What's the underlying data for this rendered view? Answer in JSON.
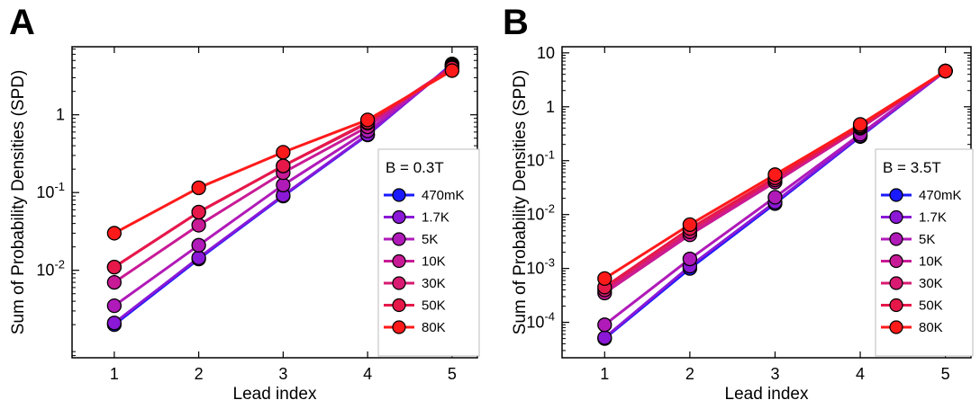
{
  "panels": [
    {
      "letter": "A",
      "legend_title": "B = 0.3T"
    },
    {
      "letter": "B",
      "legend_title": "B = 3.5T"
    }
  ],
  "chart_data": [
    {
      "type": "line",
      "title": "",
      "xlabel": "Lead index",
      "ylabel": "Sum of Probability Densities (SPD)",
      "yscale": "log",
      "x": [
        1,
        2,
        3,
        4,
        5
      ],
      "xlim": [
        0.5,
        5.3
      ],
      "ylim": [
        0.00075,
        7.5
      ],
      "yticks": [
        {
          "v": 0.01,
          "base": "10",
          "exp": "-2"
        },
        {
          "v": 0.1,
          "base": "10",
          "exp": "-1"
        },
        {
          "v": 1,
          "base": "1",
          "exp": ""
        }
      ],
      "grid": false,
      "legend_title": "B = 0.3T",
      "legend_position": "right",
      "series": [
        {
          "name": "470mK",
          "color": "#1a1aff",
          "values": [
            0.002,
            0.014,
            0.09,
            0.55,
            4.5
          ]
        },
        {
          "name": "1.7K",
          "color": "#8a18d6",
          "values": [
            0.0021,
            0.0145,
            0.092,
            0.56,
            4.4
          ]
        },
        {
          "name": "5K",
          "color": "#b01ab8",
          "values": [
            0.0035,
            0.021,
            0.125,
            0.62,
            4.3
          ]
        },
        {
          "name": "10K",
          "color": "#c81a96",
          "values": [
            0.007,
            0.038,
            0.18,
            0.7,
            4.2
          ]
        },
        {
          "name": "30K",
          "color": "#d81a72",
          "values": [
            0.011,
            0.056,
            0.22,
            0.78,
            4.1
          ]
        },
        {
          "name": "50K",
          "color": "#e6184a",
          "values": [
            0.011,
            0.056,
            0.22,
            0.8,
            4.0
          ]
        },
        {
          "name": "80K",
          "color": "#ff1a1a",
          "values": [
            0.03,
            0.115,
            0.33,
            0.86,
            3.7
          ]
        }
      ]
    },
    {
      "type": "line",
      "title": "",
      "xlabel": "Lead index",
      "ylabel": "Sum of Probability Densities (SPD)",
      "yscale": "log",
      "x": [
        1,
        2,
        3,
        4,
        5
      ],
      "xlim": [
        0.5,
        5.3
      ],
      "ylim": [
        2.2e-05,
        13
      ],
      "yticks": [
        {
          "v": 0.0001,
          "base": "10",
          "exp": "-4"
        },
        {
          "v": 0.001,
          "base": "10",
          "exp": "-3"
        },
        {
          "v": 0.01,
          "base": "10",
          "exp": "-2"
        },
        {
          "v": 0.1,
          "base": "10",
          "exp": "-1"
        },
        {
          "v": 1,
          "base": "1",
          "exp": ""
        },
        {
          "v": 10,
          "base": "10",
          "exp": ""
        }
      ],
      "grid": false,
      "legend_title": "B = 3.5T",
      "legend_position": "right",
      "series": [
        {
          "name": "470mK",
          "color": "#1a1aff",
          "values": [
            5e-05,
            0.001,
            0.016,
            0.28,
            4.6
          ]
        },
        {
          "name": "1.7K",
          "color": "#8a18d6",
          "values": [
            5.2e-05,
            0.0011,
            0.017,
            0.29,
            4.6
          ]
        },
        {
          "name": "5K",
          "color": "#b01ab8",
          "values": [
            9e-05,
            0.0015,
            0.021,
            0.31,
            4.6
          ]
        },
        {
          "name": "10K",
          "color": "#c81a96",
          "values": [
            0.00035,
            0.0042,
            0.04,
            0.4,
            4.6
          ]
        },
        {
          "name": "30K",
          "color": "#d81a72",
          "values": [
            0.0004,
            0.0048,
            0.044,
            0.42,
            4.6
          ]
        },
        {
          "name": "50K",
          "color": "#e6184a",
          "values": [
            0.00045,
            0.0055,
            0.048,
            0.44,
            4.6
          ]
        },
        {
          "name": "80K",
          "color": "#ff1a1a",
          "values": [
            0.00065,
            0.0065,
            0.055,
            0.47,
            4.6
          ]
        }
      ]
    }
  ]
}
